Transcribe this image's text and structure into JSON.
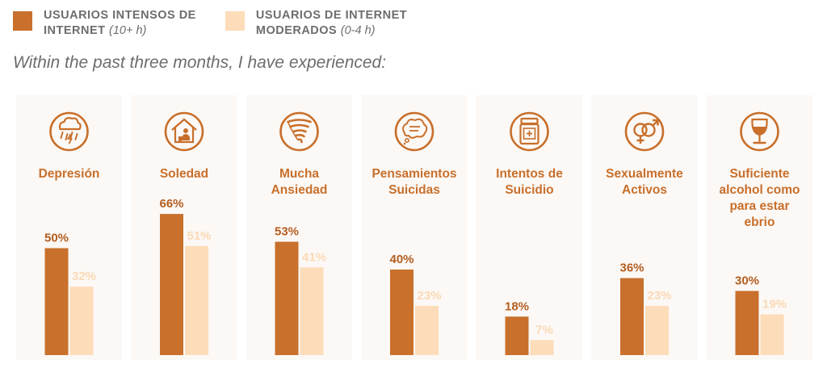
{
  "colors": {
    "heavy": "#c8702c",
    "moderate": "#fddcb9",
    "panel_bg": "#fbf8f5",
    "accent_text": "#c86f2b",
    "muted_text": "#6d6d6d"
  },
  "legend": {
    "heavy": {
      "title_line1": "USUARIOS INTENSOS DE",
      "title_line2": "INTERNET",
      "sub": "(10+ h)"
    },
    "moderate": {
      "title_line1": "USUARIOS DE INTERNET",
      "title_line2": "MODERADOS",
      "sub": "(0-4 h)"
    }
  },
  "subtitle": "Within the past three months, I have experienced:",
  "chart_data": {
    "type": "bar",
    "title": "",
    "subtitle": "Within the past three months, I have experienced:",
    "categories": [
      "Depresión",
      "Soledad",
      "Mucha Ansiedad",
      "Pensamientos Suicidas",
      "Intentos de Suicidio",
      "Sexualmente Activos",
      "Suficiente alcohol como para estar ebrio"
    ],
    "category_lines": [
      [
        "Depresión"
      ],
      [
        "Soledad"
      ],
      [
        "Mucha",
        "Ansiedad"
      ],
      [
        "Pensamientos",
        "Suicidas"
      ],
      [
        "Intentos de",
        "Suicidio"
      ],
      [
        "Sexualmente",
        "Activos"
      ],
      [
        "Suficiente",
        "alcohol como",
        "para estar",
        "ebrio"
      ]
    ],
    "icons": [
      "rain-cloud-icon",
      "house-person-icon",
      "tornado-icon",
      "thought-bubble-icon",
      "pill-bottle-icon",
      "gender-symbols-icon",
      "wine-glass-icon"
    ],
    "series": [
      {
        "name": "USUARIOS INTENSOS DE INTERNET (10+ h)",
        "values": [
          50,
          66,
          53,
          40,
          18,
          36,
          30
        ],
        "color": "#c8702c"
      },
      {
        "name": "USUARIOS DE INTERNET MODERADOS (0-4 h)",
        "values": [
          32,
          51,
          41,
          23,
          7,
          23,
          19
        ],
        "color": "#fddcb9"
      }
    ],
    "value_labels": [
      [
        "50%",
        "66%",
        "53%",
        "40%",
        "18%",
        "36%",
        "30%"
      ],
      [
        "32%",
        "51%",
        "41%",
        "23%",
        "7%",
        "23%",
        "19%"
      ]
    ],
    "unit": "%",
    "legend_position": "top-left",
    "grid": false
  }
}
